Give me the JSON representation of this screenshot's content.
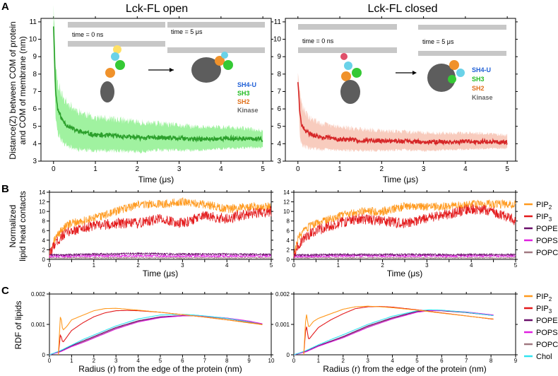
{
  "panels": {
    "A": "A",
    "B": "B",
    "C": "C"
  },
  "colors": {
    "pip2": "#ff9a1f",
    "pip3": "#e31a1c",
    "pope": "#6a0f6a",
    "pops": "#e020e0",
    "popc": "#a07880",
    "chol": "#33e3f0",
    "open_line": "#2ca02c",
    "open_band": "#8ff08f",
    "closed_line": "#d62728",
    "closed_band": "#f7c3b3",
    "sh4u": "#1f5fd6",
    "sh3": "#22bb22",
    "sh2": "#e0701a",
    "kinase": "#666666"
  },
  "panelA": {
    "ylabel_line1": "Distance(Z) between COM of protein",
    "ylabel_line2": "and COM of membrane (nm)",
    "open": {
      "title": "Lck-FL open",
      "time0": "time = 0 ns",
      "time5": "time = 5 μs"
    },
    "closed": {
      "title": "Lck-FL closed",
      "time0": "time = 0 ns",
      "time5": "time = 5 μs"
    },
    "domains": {
      "sh4u": "SH4-U",
      "sh3": "SH3",
      "sh2": "SH2",
      "kinase": "Kinase"
    }
  },
  "panelB": {
    "ylabel_line1": "Normalized",
    "ylabel_line2": "lipid head contacts",
    "legend": [
      {
        "key": "pip2",
        "base": "PIP",
        "sub": "2"
      },
      {
        "key": "pip3",
        "base": "PIP",
        "sub": "3"
      },
      {
        "key": "pope",
        "base": "POPE",
        "sub": ""
      },
      {
        "key": "pops",
        "base": "POPS",
        "sub": ""
      },
      {
        "key": "popc",
        "base": "POPC",
        "sub": ""
      }
    ]
  },
  "panelC": {
    "ylabel": "RDF of lipids",
    "legend": [
      {
        "key": "pip2",
        "base": "PIP",
        "sub": "2"
      },
      {
        "key": "pip3",
        "base": "PIP",
        "sub": "3"
      },
      {
        "key": "pope",
        "base": "POPE",
        "sub": ""
      },
      {
        "key": "pops",
        "base": "POPS",
        "sub": ""
      },
      {
        "key": "popc",
        "base": "POPC",
        "sub": ""
      },
      {
        "key": "chol",
        "base": "Chol",
        "sub": ""
      }
    ]
  },
  "chart_data": [
    {
      "id": "A-open",
      "type": "line",
      "title": "Lck-FL open",
      "xlabel": "Time (μs)",
      "ylabel": "Distance(Z) between COM of protein and COM of membrane (nm)",
      "xlim": [
        -0.3,
        5.2
      ],
      "ylim": [
        3,
        11.2
      ],
      "xticks": [
        0,
        1,
        2,
        3,
        4,
        5
      ],
      "yticks": [
        3,
        4,
        5,
        6,
        7,
        8,
        9,
        10,
        11
      ],
      "series": [
        {
          "name": "distance",
          "x": [
            0,
            0.05,
            0.1,
            0.2,
            0.3,
            0.5,
            0.7,
            1,
            1.5,
            2,
            2.5,
            3,
            3.5,
            4,
            4.5,
            5
          ],
          "mean": [
            10.8,
            7.0,
            6.0,
            5.4,
            5.1,
            4.8,
            4.65,
            4.5,
            4.45,
            4.35,
            4.35,
            4.3,
            4.25,
            4.3,
            4.3,
            4.25
          ],
          "band": [
            1.3,
            1.6,
            1.5,
            1.4,
            1.3,
            1.2,
            1.1,
            1.0,
            0.95,
            0.9,
            0.8,
            0.75,
            0.7,
            0.65,
            0.6,
            0.5
          ]
        }
      ]
    },
    {
      "id": "A-closed",
      "type": "line",
      "title": "Lck-FL closed",
      "xlabel": "Time (μs)",
      "ylabel": "",
      "xlim": [
        -0.3,
        5.2
      ],
      "ylim": [
        3,
        11.2
      ],
      "xticks": [
        0,
        1,
        2,
        3,
        4,
        5
      ],
      "yticks": [
        3,
        4,
        5,
        6,
        7,
        8,
        9,
        10,
        11
      ],
      "series": [
        {
          "name": "distance",
          "x": [
            0,
            0.05,
            0.1,
            0.2,
            0.3,
            0.5,
            0.7,
            1,
            1.5,
            2,
            2.5,
            3,
            3.5,
            4,
            4.5,
            5
          ],
          "mean": [
            7.6,
            5.6,
            5.0,
            4.7,
            4.55,
            4.4,
            4.35,
            4.25,
            4.2,
            4.15,
            4.15,
            4.1,
            4.1,
            4.12,
            4.12,
            4.1
          ],
          "band": [
            0.4,
            1.4,
            1.2,
            1.0,
            0.9,
            0.8,
            0.75,
            0.7,
            0.65,
            0.6,
            0.55,
            0.55,
            0.5,
            0.5,
            0.45,
            0.4
          ]
        }
      ]
    },
    {
      "id": "B-open",
      "type": "line",
      "xlabel": "Time (μs)",
      "ylabel": "Normalized lipid head contacts",
      "xlim": [
        0,
        5
      ],
      "ylim": [
        0,
        14
      ],
      "xticks": [
        0,
        0.5,
        1,
        1.5,
        2,
        2.5,
        3,
        3.5,
        4,
        4.5,
        5
      ],
      "xticklabels": [
        "0",
        "",
        "1",
        "",
        "2",
        "",
        "3",
        "",
        "4",
        "",
        "5"
      ],
      "yticks": [
        0,
        2,
        4,
        6,
        8,
        10,
        12,
        14
      ],
      "series": [
        {
          "name": "PIP2",
          "x": [
            0,
            0.1,
            0.3,
            0.5,
            1,
            1.5,
            2,
            2.5,
            3,
            3.5,
            4,
            4.5,
            5
          ],
          "values": [
            1,
            4,
            6.5,
            7.5,
            8.5,
            10,
            11.5,
            11.5,
            12,
            11.5,
            10.5,
            11,
            11
          ],
          "noise": 0.9
        },
        {
          "name": "PIP3",
          "x": [
            0,
            0.1,
            0.3,
            0.5,
            1,
            1.5,
            2,
            2.5,
            3,
            3.5,
            4,
            4.5,
            5
          ],
          "values": [
            0.8,
            3,
            5,
            6,
            7,
            7.5,
            7.5,
            8.5,
            7.5,
            9,
            8.5,
            9.5,
            10
          ],
          "noise": 1.1
        },
        {
          "name": "POPE",
          "x": [
            0,
            1,
            2,
            3,
            4,
            5
          ],
          "values": [
            0.9,
            1.1,
            1.2,
            1.1,
            1.1,
            1.0
          ],
          "noise": 0.2
        },
        {
          "name": "POPS",
          "x": [
            0,
            1,
            2,
            3,
            4,
            5
          ],
          "values": [
            0.6,
            0.7,
            0.7,
            0.7,
            0.7,
            0.7
          ],
          "noise": 0.2
        },
        {
          "name": "POPC",
          "x": [
            0,
            1,
            2,
            3,
            4,
            5
          ],
          "values": [
            0.3,
            0.3,
            0.3,
            0.3,
            0.3,
            0.3
          ],
          "noise": 0.1
        }
      ]
    },
    {
      "id": "B-closed",
      "type": "line",
      "xlabel": "Time (μs)",
      "ylabel": "",
      "xlim": [
        0,
        5
      ],
      "ylim": [
        0,
        14
      ],
      "xticks": [
        0,
        0.5,
        1,
        1.5,
        2,
        2.5,
        3,
        3.5,
        4,
        4.5,
        5
      ],
      "xticklabels": [
        "0",
        "",
        "1",
        "",
        "2",
        "",
        "3",
        "",
        "4",
        "",
        "5"
      ],
      "yticks": [
        0,
        2,
        4,
        6,
        8,
        10,
        12,
        14
      ],
      "series": [
        {
          "name": "PIP2",
          "x": [
            0,
            0.1,
            0.3,
            0.5,
            1,
            1.5,
            2,
            2.5,
            3,
            3.5,
            4,
            4.5,
            5
          ],
          "values": [
            1,
            4.5,
            6.5,
            7.5,
            9,
            10,
            10,
            11,
            11,
            11,
            11.5,
            11.5,
            11.5
          ],
          "noise": 0.9
        },
        {
          "name": "PIP3",
          "x": [
            0,
            0.1,
            0.3,
            0.5,
            1,
            1.5,
            2,
            2.5,
            3,
            3.5,
            4,
            4.5,
            5
          ],
          "values": [
            0.8,
            3,
            5,
            6,
            7.5,
            8.5,
            8,
            7.5,
            8.5,
            9.5,
            10.5,
            10,
            8
          ],
          "noise": 1.1
        },
        {
          "name": "POPE",
          "x": [
            0,
            1,
            2,
            3,
            4,
            5
          ],
          "values": [
            0.9,
            1.0,
            1.0,
            1.0,
            1.0,
            1.0
          ],
          "noise": 0.2
        },
        {
          "name": "POPS",
          "x": [
            0,
            1,
            2,
            3,
            4,
            5
          ],
          "values": [
            0.6,
            0.7,
            0.7,
            0.7,
            0.7,
            0.7
          ],
          "noise": 0.2
        },
        {
          "name": "POPC",
          "x": [
            0,
            1,
            2,
            3,
            4,
            5
          ],
          "values": [
            0.3,
            0.3,
            0.3,
            0.3,
            0.3,
            0.3
          ],
          "noise": 0.1
        }
      ]
    },
    {
      "id": "C-open",
      "type": "line",
      "xlabel": "Radius (r) from the edge of the protein (nm)",
      "ylabel": "RDF of lipids",
      "xlim": [
        0,
        10
      ],
      "ylim": [
        0,
        0.002
      ],
      "xticks": [
        0,
        1,
        2,
        3,
        4,
        5,
        6,
        7,
        8,
        9,
        10
      ],
      "yticks": [
        0,
        0.001,
        0.002
      ],
      "yticklabels": [
        "0",
        "0.001",
        "0.002"
      ],
      "series": [
        {
          "name": "PIP2",
          "x": [
            0.4,
            0.5,
            0.6,
            0.8,
            1,
            1.5,
            2,
            2.5,
            3,
            3.5,
            4,
            5,
            6,
            7,
            8,
            9,
            9.6
          ],
          "values": [
            0,
            0.00135,
            0.0008,
            0.00095,
            0.00115,
            0.0013,
            0.00145,
            0.00152,
            0.00153,
            0.0015,
            0.00147,
            0.0014,
            0.00132,
            0.00124,
            0.00115,
            0.00105,
            0.00099
          ]
        },
        {
          "name": "PIP3",
          "x": [
            0.4,
            0.5,
            0.6,
            0.8,
            1,
            1.5,
            2,
            2.5,
            3,
            3.5,
            4,
            5,
            6,
            7,
            8,
            9,
            9.6
          ],
          "values": [
            0,
            0.0007,
            0.0004,
            0.0006,
            0.0008,
            0.00105,
            0.00125,
            0.00138,
            0.00145,
            0.00146,
            0.00145,
            0.0014,
            0.00132,
            0.00124,
            0.00115,
            0.00106,
            0.001
          ]
        },
        {
          "name": "POPE",
          "x": [
            0,
            0.5,
            1,
            1.5,
            2,
            3,
            4,
            5,
            6,
            6.5,
            7,
            8,
            9,
            9.6
          ],
          "values": [
            0,
            0.00012,
            0.0003,
            0.00045,
            0.0006,
            0.0009,
            0.00112,
            0.00125,
            0.00129,
            0.00129,
            0.00127,
            0.0012,
            0.00108,
            0.00099
          ]
        },
        {
          "name": "POPS",
          "x": [
            0,
            0.5,
            1,
            1.5,
            2,
            3,
            4,
            5,
            6,
            6.5,
            7,
            8,
            9,
            9.6
          ],
          "values": [
            0,
            0.0001,
            0.00027,
            0.0004,
            0.00055,
            0.00085,
            0.00108,
            0.00122,
            0.00128,
            0.00129,
            0.00127,
            0.00121,
            0.00111,
            0.00102
          ]
        },
        {
          "name": "POPC",
          "x": [
            0,
            0.5,
            1,
            1.5,
            2,
            3,
            4,
            5,
            6,
            6.5,
            7,
            8,
            9,
            9.6
          ],
          "values": [
            0,
            0.00011,
            0.00028,
            0.00042,
            0.00057,
            0.00087,
            0.0011,
            0.00123,
            0.00128,
            0.00128,
            0.00126,
            0.00119,
            0.00108,
            0.001
          ]
        },
        {
          "name": "Chol",
          "x": [
            0,
            0.5,
            1,
            1.5,
            2,
            3,
            4,
            5,
            6,
            6.5,
            7,
            8,
            9,
            9.6
          ],
          "values": [
            0,
            0.00014,
            0.00032,
            0.0005,
            0.00065,
            0.00095,
            0.00118,
            0.00131,
            0.00133,
            0.00131,
            0.00128,
            0.0012,
            0.00108,
            0.001
          ]
        }
      ]
    },
    {
      "id": "C-closed",
      "type": "line",
      "xlabel": "Radius (r) from the edge of the protein (nm)",
      "ylabel": "",
      "xlim": [
        0,
        9
      ],
      "ylim": [
        0,
        0.002
      ],
      "xticks": [
        0,
        1,
        2,
        3,
        4,
        5,
        6,
        7,
        8,
        9
      ],
      "yticks": [
        0,
        0.001,
        0.002
      ],
      "yticklabels": [
        "0",
        "0.001",
        "0.002"
      ],
      "series": [
        {
          "name": "PIP2",
          "x": [
            0.4,
            0.5,
            0.6,
            0.8,
            1,
            1.5,
            2,
            2.5,
            3,
            3.5,
            4,
            5,
            6,
            7,
            8.1
          ],
          "values": [
            0,
            0.0014,
            0.0009,
            0.0011,
            0.0012,
            0.00135,
            0.0015,
            0.00158,
            0.0016,
            0.00158,
            0.00155,
            0.00147,
            0.00137,
            0.00128,
            0.00118
          ]
        },
        {
          "name": "PIP3",
          "x": [
            0.4,
            0.5,
            0.6,
            0.8,
            1,
            1.5,
            2,
            2.5,
            3,
            3.5,
            4,
            5,
            6,
            7,
            8.1
          ],
          "values": [
            0,
            0.001,
            0.0005,
            0.0007,
            0.0009,
            0.00115,
            0.00135,
            0.00152,
            0.00158,
            0.00159,
            0.00157,
            0.00148,
            0.00138,
            0.00128,
            0.00117
          ]
        },
        {
          "name": "POPE",
          "x": [
            0,
            0.5,
            1,
            1.5,
            2,
            3,
            4,
            5,
            5.5,
            6,
            7,
            8,
            8.1
          ],
          "values": [
            0,
            0.00012,
            0.0003,
            0.00045,
            0.0006,
            0.00095,
            0.00122,
            0.00143,
            0.00146,
            0.00145,
            0.00139,
            0.0013,
            0.00129
          ]
        },
        {
          "name": "POPS",
          "x": [
            0,
            0.5,
            1,
            1.5,
            2,
            3,
            4,
            5,
            5.5,
            6,
            7,
            8,
            8.1
          ],
          "values": [
            0,
            0.0001,
            0.00028,
            0.00042,
            0.00056,
            0.0009,
            0.00118,
            0.0014,
            0.00145,
            0.00146,
            0.00141,
            0.00132,
            0.00131
          ]
        },
        {
          "name": "POPC",
          "x": [
            0,
            0.5,
            1,
            1.5,
            2,
            3,
            4,
            5,
            5.5,
            6,
            7,
            8,
            8.1
          ],
          "values": [
            0,
            0.00011,
            0.00029,
            0.00043,
            0.00058,
            0.00092,
            0.0012,
            0.00141,
            0.00145,
            0.00145,
            0.0014,
            0.00131,
            0.0013
          ]
        },
        {
          "name": "Chol",
          "x": [
            0,
            0.5,
            1,
            1.5,
            2,
            3,
            4,
            5,
            5.5,
            6,
            7,
            8,
            8.1
          ],
          "values": [
            0,
            0.00014,
            0.00033,
            0.0005,
            0.00066,
            0.001,
            0.00127,
            0.00145,
            0.00148,
            0.00147,
            0.0014,
            0.0013,
            0.00129
          ]
        }
      ]
    }
  ]
}
